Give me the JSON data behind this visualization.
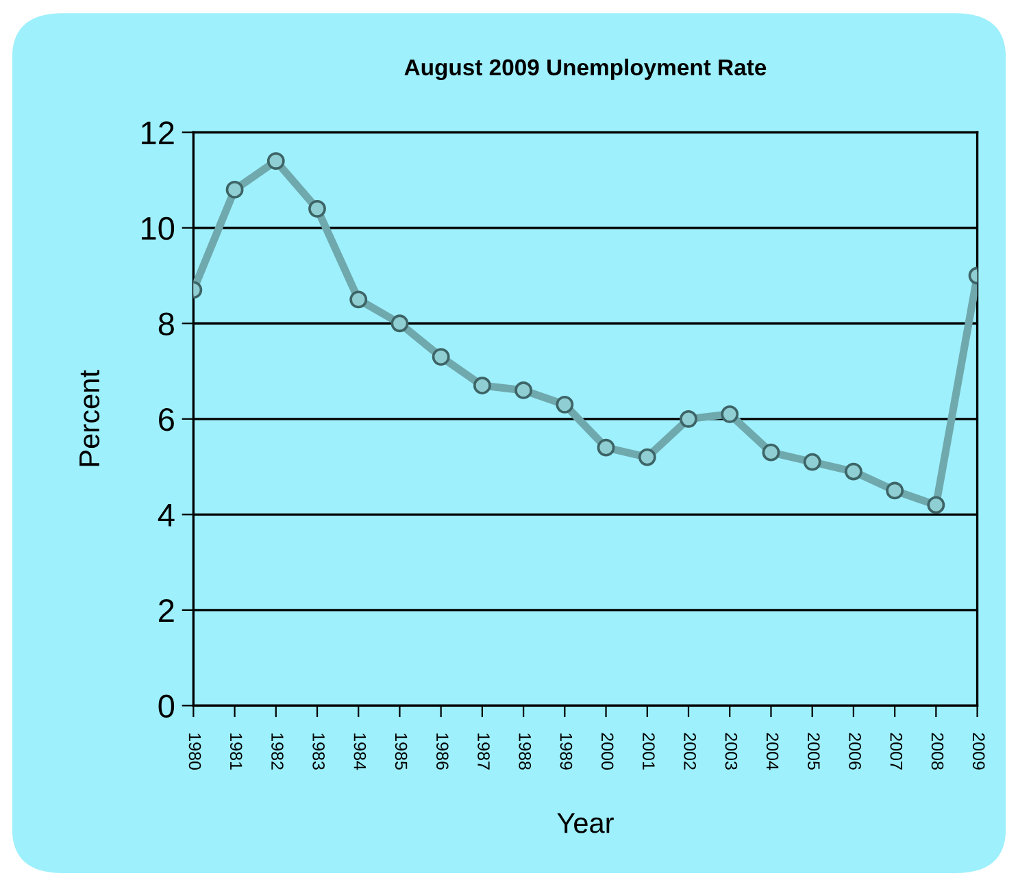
{
  "chart_data": {
    "type": "line",
    "title": "August 2009 Unemployment Rate",
    "xlabel": "Year",
    "ylabel": "Percent",
    "categories": [
      "1980",
      "1981",
      "1982",
      "1983",
      "1984",
      "1985",
      "1986",
      "1987",
      "1988",
      "1989",
      "2000",
      "2001",
      "2002",
      "2003",
      "2004",
      "2005",
      "2006",
      "2007",
      "2008",
      "2009"
    ],
    "series": [
      {
        "color": "#6fa9ad",
        "values": [
          8.7,
          10.8,
          11.4,
          10.4,
          8.5,
          8.0,
          7.3,
          6.7,
          6.6,
          6.3,
          5.4,
          5.2,
          6.0,
          6.1,
          5.3,
          5.1,
          4.9,
          4.5,
          4.2,
          9.0
        ]
      }
    ],
    "ylim": [
      0,
      12
    ],
    "yticks": [
      0,
      2,
      4,
      6,
      8,
      10,
      12
    ],
    "grid": "y",
    "marker": "circle",
    "line_style": "solid",
    "legend": false
  }
}
